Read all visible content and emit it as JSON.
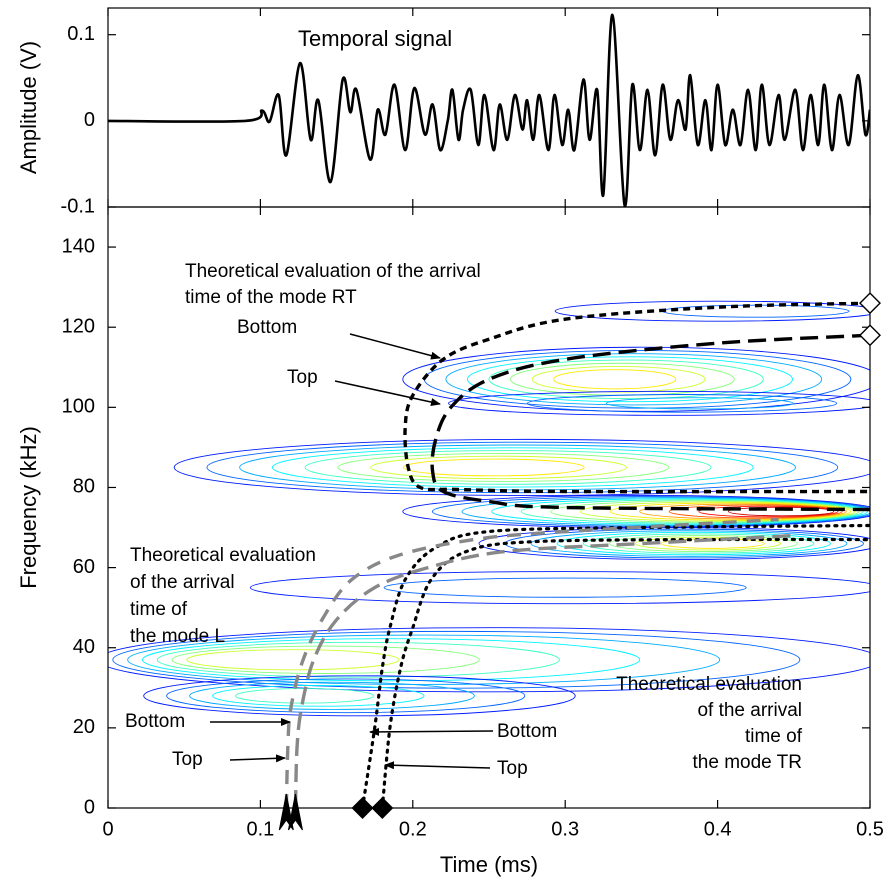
{
  "chart_data": [
    {
      "type": "line",
      "title": "Temporal signal",
      "ylabel": "Amplitude (V)",
      "color": "#000000",
      "xlim": [
        0,
        0.5
      ],
      "ylim": [
        -0.1,
        0.131
      ],
      "yticks": [
        0.1,
        0,
        -0.1
      ],
      "x": [
        0,
        0.09,
        0.101,
        0.106,
        0.112,
        0.117,
        0.126,
        0.133,
        0.138,
        0.146,
        0.154,
        0.159,
        0.163,
        0.172,
        0.177,
        0.182,
        0.188,
        0.195,
        0.201,
        0.208,
        0.213,
        0.218,
        0.223,
        0.226,
        0.23,
        0.233,
        0.238,
        0.243,
        0.247,
        0.253,
        0.257,
        0.262,
        0.267,
        0.272,
        0.275,
        0.279,
        0.283,
        0.289,
        0.293,
        0.298,
        0.302,
        0.306,
        0.312,
        0.316,
        0.321,
        0.325,
        0.331,
        0.339,
        0.344,
        0.349,
        0.354,
        0.359,
        0.364,
        0.369,
        0.374,
        0.379,
        0.382,
        0.387,
        0.392,
        0.396,
        0.4,
        0.405,
        0.41,
        0.415,
        0.42,
        0.425,
        0.429,
        0.434,
        0.44,
        0.444,
        0.451,
        0.456,
        0.461,
        0.466,
        0.47,
        0.475,
        0.48,
        0.486,
        0.492,
        0.497,
        0.5
      ],
      "values": [
        0,
        0,
        0.012,
        -0.001,
        0.03,
        -0.04,
        0.067,
        -0.022,
        0.024,
        -0.071,
        0.048,
        0.01,
        0.036,
        -0.045,
        0.013,
        -0.016,
        0.042,
        -0.034,
        0.038,
        -0.016,
        0.019,
        -0.034,
        0.001,
        0.036,
        -0.022,
        0.013,
        0.036,
        -0.028,
        0.03,
        -0.034,
        0.019,
        -0.022,
        0.03,
        -0.01,
        0.024,
        -0.022,
        0.03,
        -0.034,
        0.03,
        -0.028,
        0.013,
        -0.034,
        0.048,
        -0.022,
        0.036,
        -0.086,
        0.123,
        -0.098,
        0.042,
        -0.034,
        0.036,
        -0.04,
        0.042,
        -0.022,
        0.024,
        -0.01,
        0.053,
        -0.028,
        0.024,
        -0.034,
        0.042,
        -0.028,
        0.013,
        -0.028,
        0.036,
        -0.034,
        0.042,
        -0.028,
        0.03,
        -0.022,
        0.036,
        -0.034,
        0.03,
        -0.028,
        0.042,
        -0.034,
        0.03,
        -0.028,
        0.053,
        -0.016,
        0.013
      ]
    },
    {
      "type": "contour",
      "xlabel": "Time (ms)",
      "ylabel": "Frequency (kHz)",
      "xlim": [
        0,
        0.5
      ],
      "xticks": [
        0,
        0.1,
        0.2,
        0.3,
        0.4,
        0.5
      ],
      "ylim": [
        0,
        150
      ],
      "yticks": [
        0,
        20,
        40,
        60,
        80,
        100,
        120,
        140
      ],
      "bands": [
        {
          "t": [
            0.3,
            0.5
          ],
          "peak": 0.45,
          "f": 124,
          "df": 2.5,
          "levels": 2
        },
        {
          "t": [
            0.2,
            0.5
          ],
          "peak": 0.33,
          "f": 107,
          "df": 8,
          "levels": 8
        },
        {
          "t": [
            0.23,
            0.5
          ],
          "peak": 0.4,
          "f": 101,
          "df": 3,
          "levels": 3
        },
        {
          "t": [
            0.05,
            0.5
          ],
          "peak": 0.25,
          "f": 85,
          "df": 7,
          "levels": 8
        },
        {
          "t": [
            0.2,
            0.5
          ],
          "peak": 0.45,
          "f": 74,
          "df": 4,
          "levels": 12
        },
        {
          "t": [
            0.25,
            0.5
          ],
          "peak": 0.4,
          "f": 66,
          "df": 4,
          "levels": 8
        },
        {
          "t": [
            0.1,
            0.5
          ],
          "peak": 0.3,
          "f": 55,
          "df": 4,
          "levels": 2
        },
        {
          "t": [
            0,
            0.5
          ],
          "peak": 0.1,
          "f": 37,
          "df": 8,
          "levels": 7
        },
        {
          "t": [
            0.03,
            0.3
          ],
          "peak": 0.12,
          "f": 28,
          "df": 5,
          "levels": 5
        }
      ],
      "curves": [
        {
          "color": "#000000",
          "dash": "short",
          "marker": "diamond-open",
          "x": [
            0.5,
            0.4,
            0.3,
            0.25,
            0.22,
            0.2,
            0.195,
            0.197,
            0.205,
            0.23,
            0.3,
            0.5
          ],
          "values": [
            126,
            125,
            122,
            117,
            112,
            103,
            95,
            85,
            80,
            79.5,
            79,
            79
          ]
        },
        {
          "color": "#000000",
          "dash": "long",
          "marker": "diamond-open",
          "x": [
            0.5,
            0.4,
            0.3,
            0.25,
            0.225,
            0.215,
            0.213,
            0.22,
            0.25,
            0.3,
            0.5
          ],
          "values": [
            118,
            116,
            112,
            107,
            100,
            92,
            84,
            79,
            76.5,
            75,
            74.5
          ]
        },
        {
          "color": "#000000",
          "dash": "dot",
          "marker": "diamond",
          "x": [
            0.167,
            0.175,
            0.18,
            0.185,
            0.195,
            0.215,
            0.25,
            0.35,
            0.5
          ],
          "values": [
            0,
            20,
            35,
            45,
            57,
            65,
            69,
            70,
            70.5
          ]
        },
        {
          "color": "#000000",
          "dash": "dot",
          "marker": "diamond",
          "x": [
            0.18,
            0.185,
            0.192,
            0.2,
            0.212,
            0.235,
            0.28,
            0.4,
            0.5
          ],
          "values": [
            0,
            20,
            35,
            45,
            57,
            64,
            66.5,
            67,
            67
          ]
        },
        {
          "color": "#888888",
          "dash": "medium",
          "marker": "arrow",
          "x": [
            0.117,
            0.118,
            0.12,
            0.128,
            0.142,
            0.16,
            0.19,
            0.24,
            0.3,
            0.44
          ],
          "values": [
            0,
            15,
            25,
            37,
            48,
            57,
            63,
            67,
            69,
            72
          ]
        },
        {
          "color": "#888888",
          "dash": "long",
          "marker": "arrow",
          "x": [
            0.123,
            0.124,
            0.127,
            0.135,
            0.15,
            0.175,
            0.21,
            0.26,
            0.35,
            0.45
          ],
          "values": [
            0,
            15,
            25,
            37,
            47,
            55,
            60,
            64,
            66,
            68
          ]
        }
      ],
      "annotations": [
        [
          "Theoretical evaluation of the arrival",
          "time of the mode RT"
        ],
        [
          "Bottom"
        ],
        [
          "Top"
        ],
        [
          "Theoretical evaluation",
          "of the arrival",
          "time of",
          "the mode L"
        ],
        [
          "Bottom"
        ],
        [
          "Top"
        ],
        [
          "Theoretical evaluation",
          "of the arrival",
          "time of",
          "the mode TR"
        ],
        [
          "Bottom"
        ],
        [
          "Top"
        ]
      ]
    }
  ]
}
